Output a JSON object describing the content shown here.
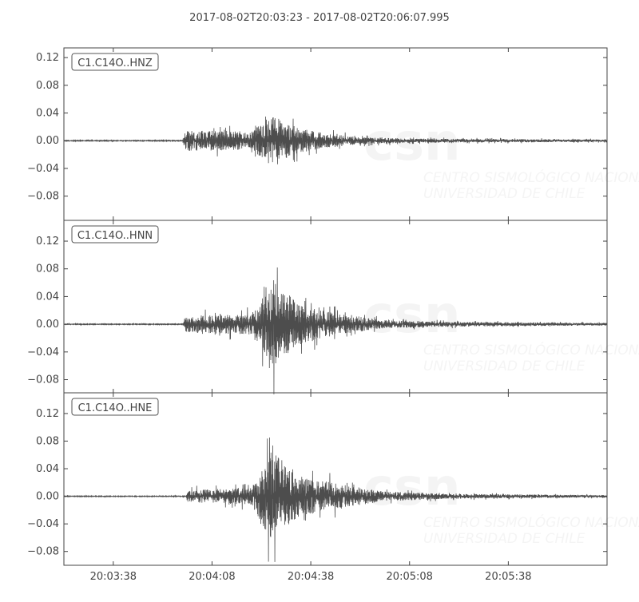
{
  "chart_data": {
    "type": "line",
    "title": "2017-08-02T20:03:23  -  2017-08-02T20:06:07.995",
    "xlim": [
      "20:03:23",
      "20:06:07.995"
    ],
    "x_ticks": [
      "20:03:38",
      "20:04:08",
      "20:04:38",
      "20:05:08",
      "20:05:38"
    ],
    "line_color": "#4d4d4d",
    "watermark": {
      "logo_text": "csn",
      "line1": "CENTRO SISMOLÓGICO NACIONAL",
      "line2": "UNIVERSIDAD DE CHILE"
    },
    "traces": [
      {
        "name": "C1.C14O..HNZ",
        "ylim": [
          -0.115,
          0.134
        ],
        "y_ticks": [
          "0.12",
          "0.08",
          "0.04",
          "0.00",
          "−0.04",
          "−0.08"
        ],
        "envelope": [
          [
            "20:03:23",
            0.001
          ],
          [
            "20:03:59",
            0.001
          ],
          [
            "20:04:00",
            0.025
          ],
          [
            "20:04:20",
            0.022
          ],
          [
            "20:04:26",
            0.06
          ],
          [
            "20:04:32",
            0.035
          ],
          [
            "20:04:42",
            0.018
          ],
          [
            "20:04:52",
            0.009
          ],
          [
            "20:05:10",
            0.005
          ],
          [
            "20:06:07",
            0.003
          ]
        ]
      },
      {
        "name": "C1.C14O..HNN",
        "ylim": [
          -0.099,
          0.15
        ],
        "y_ticks": [
          "0.12",
          "0.08",
          "0.04",
          "0.00",
          "−0.04",
          "−0.08"
        ],
        "envelope": [
          [
            "20:03:23",
            0.001
          ],
          [
            "20:03:59",
            0.001
          ],
          [
            "20:04:00",
            0.02
          ],
          [
            "20:04:20",
            0.025
          ],
          [
            "20:04:27",
            0.105
          ],
          [
            "20:04:34",
            0.05
          ],
          [
            "20:04:46",
            0.025
          ],
          [
            "20:05:00",
            0.01
          ],
          [
            "20:05:20",
            0.006
          ],
          [
            "20:06:07",
            0.003
          ]
        ]
      },
      {
        "name": "C1.C14O..HNE",
        "ylim": [
          -0.1,
          0.15
        ],
        "y_ticks": [
          "0.12",
          "0.08",
          "0.04",
          "0.00",
          "−0.04",
          "−0.08"
        ],
        "envelope": [
          [
            "20:03:23",
            0.001
          ],
          [
            "20:04:00",
            0.001
          ],
          [
            "20:04:01",
            0.015
          ],
          [
            "20:04:20",
            0.02
          ],
          [
            "20:04:26",
            0.11
          ],
          [
            "20:04:34",
            0.05
          ],
          [
            "20:04:46",
            0.03
          ],
          [
            "20:05:00",
            0.012
          ],
          [
            "20:05:20",
            0.006
          ],
          [
            "20:06:07",
            0.003
          ]
        ]
      }
    ]
  }
}
